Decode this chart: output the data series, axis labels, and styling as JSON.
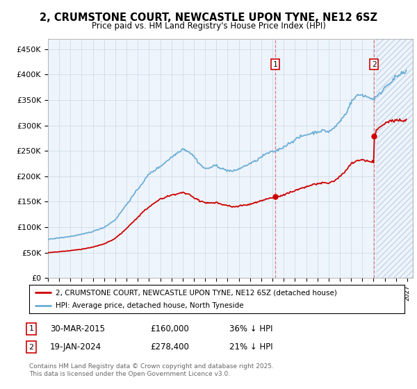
{
  "title": "2, CRUMSTONE COURT, NEWCASTLE UPON TYNE, NE12 6SZ",
  "subtitle": "Price paid vs. HM Land Registry's House Price Index (HPI)",
  "ylabel_ticks": [
    "£0",
    "£50K",
    "£100K",
    "£150K",
    "£200K",
    "£250K",
    "£300K",
    "£350K",
    "£400K",
    "£450K"
  ],
  "ylim": [
    0,
    470000
  ],
  "xlim_start": 1995.0,
  "xlim_end": 2027.5,
  "sale1_date": 2015.25,
  "sale1_price": 160000,
  "sale2_date": 2024.05,
  "sale2_price": 278400,
  "hpi_color": "#6baed6",
  "price_color": "#cc0000",
  "future_cutoff": 2024.3,
  "legend_label1": "2, CRUMSTONE COURT, NEWCASTLE UPON TYNE, NE12 6SZ (detached house)",
  "legend_label2": "HPI: Average price, detached house, North Tyneside",
  "footer": "Contains HM Land Registry data © Crown copyright and database right 2025.\nThis data is licensed under the Open Government Licence v3.0.",
  "background_color": "#ffffff",
  "chart_bg": "#eef4fb"
}
